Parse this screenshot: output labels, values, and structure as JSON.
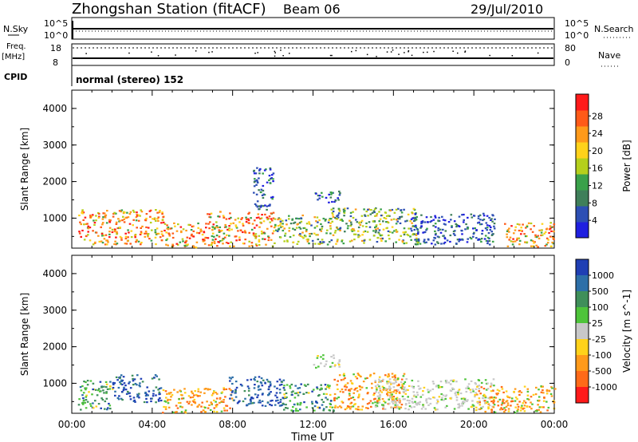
{
  "header": {
    "title": "Zhongshan Station (fitACF)",
    "beam": "Beam 06",
    "date": "29/Jul/2010"
  },
  "top_panels": {
    "nsky_label": "N.Sky",
    "nsearch_label": "N.Search",
    "left_hi": "10^5",
    "left_lo": "10^0",
    "right_hi": "10^5",
    "right_lo": "10^0",
    "freq_label": "Freq.",
    "freq_unit": "[MHz]",
    "freq_hi": "18",
    "freq_lo": "8",
    "nave_label": "Nave",
    "nave_hi": "80",
    "nave_lo": "0",
    "cpid_label": "CPID",
    "cpid_value": "normal (stereo) 152"
  },
  "colors": {
    "power": [
      "#1f1fe0",
      "#2d4fb4",
      "#3f7f5a",
      "#3aa14a",
      "#b5d01c",
      "#ffd21a",
      "#ff9a1a",
      "#ff5a18",
      "#ff1a1a"
    ],
    "velocity": [
      "#1f3fb4",
      "#2d6fa8",
      "#3f8f5a",
      "#4ec43a",
      "#c8c8c8",
      "#ffd21a",
      "#ff9a1a",
      "#ff6a18",
      "#ff1a1a"
    ]
  },
  "chart_data": [
    {
      "type": "heatmap",
      "ylabel": "Slant Range [km]",
      "xlabel": "Time UT",
      "ylim": [
        180,
        4500
      ],
      "yticks": [
        1000,
        2000,
        3000,
        4000
      ],
      "xticks": [
        "00:00",
        "04:00",
        "08:00",
        "12:00",
        "16:00",
        "20:00",
        "00:00"
      ],
      "xlim_hours": [
        0,
        24
      ],
      "colorbar": {
        "label": "Power [dB]",
        "ticks": [
          "4",
          "8",
          "12",
          "16",
          "20",
          "24",
          "28"
        ],
        "range": [
          0,
          30
        ]
      },
      "regions": [
        {
          "t0": 0.3,
          "t1": 4.6,
          "r0": 300,
          "r1": 1250,
          "level": "high"
        },
        {
          "t0": 4.6,
          "t1": 6.7,
          "r0": 220,
          "r1": 900,
          "level": "high"
        },
        {
          "t0": 6.7,
          "t1": 10.0,
          "r0": 250,
          "r1": 1200,
          "level": "high"
        },
        {
          "t0": 9.0,
          "t1": 10.0,
          "r0": 1200,
          "r1": 2400,
          "level": "low"
        },
        {
          "t0": 10.0,
          "t1": 12.8,
          "r0": 300,
          "r1": 1100,
          "level": "mid"
        },
        {
          "t0": 12.0,
          "t1": 13.3,
          "r0": 1450,
          "r1": 1800,
          "level": "low"
        },
        {
          "t0": 12.8,
          "t1": 17.2,
          "r0": 300,
          "r1": 1300,
          "level": "mid"
        },
        {
          "t0": 16.8,
          "t1": 21.0,
          "r0": 300,
          "r1": 1150,
          "level": "low"
        },
        {
          "t0": 21.5,
          "t1": 24.0,
          "r0": 220,
          "r1": 900,
          "level": "high"
        }
      ]
    },
    {
      "type": "heatmap",
      "ylabel": "Slant Range [km]",
      "xlabel": "Time UT",
      "ylim": [
        180,
        4500
      ],
      "yticks": [
        1000,
        2000,
        3000,
        4000
      ],
      "xticks": [
        "00:00",
        "04:00",
        "08:00",
        "12:00",
        "16:00",
        "20:00",
        "00:00"
      ],
      "xlim_hours": [
        0,
        24
      ],
      "colorbar": {
        "label": "Velocity [m s^-1]",
        "ticks": [
          "1000",
          "500",
          "100",
          "25",
          "-25",
          "-100",
          "-500",
          "-1000"
        ],
        "range": [
          -1000,
          1000
        ]
      },
      "regions": [
        {
          "t0": 0.3,
          "t1": 2.0,
          "r0": 300,
          "r1": 1100,
          "level": "green"
        },
        {
          "t0": 2.0,
          "t1": 4.4,
          "r0": 500,
          "r1": 1250,
          "level": "blue"
        },
        {
          "t0": 4.4,
          "t1": 8.0,
          "r0": 220,
          "r1": 900,
          "level": "orange"
        },
        {
          "t0": 7.8,
          "t1": 10.5,
          "r0": 400,
          "r1": 1200,
          "level": "blue"
        },
        {
          "t0": 10.5,
          "t1": 13.0,
          "r0": 250,
          "r1": 1000,
          "level": "green"
        },
        {
          "t0": 12.0,
          "t1": 13.3,
          "r0": 1450,
          "r1": 1800,
          "level": "grey"
        },
        {
          "t0": 13.0,
          "t1": 16.5,
          "r0": 300,
          "r1": 1300,
          "level": "orange"
        },
        {
          "t0": 15.0,
          "t1": 21.0,
          "r0": 300,
          "r1": 1150,
          "level": "grey"
        },
        {
          "t0": 20.0,
          "t1": 24.0,
          "r0": 220,
          "r1": 950,
          "level": "orange"
        }
      ]
    }
  ]
}
